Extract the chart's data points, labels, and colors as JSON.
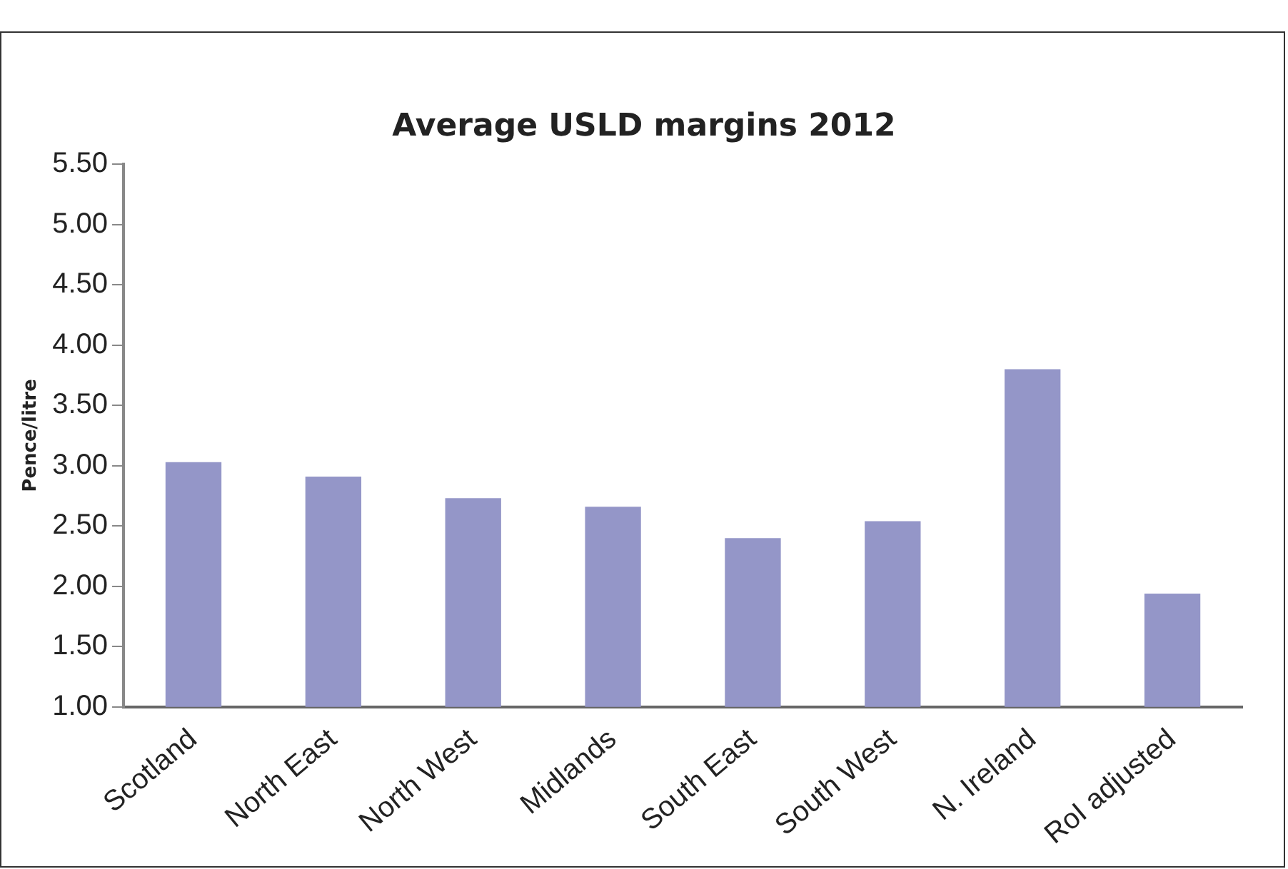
{
  "chart_data": {
    "type": "bar",
    "title": "Average USLD margins 2012",
    "ylabel": "Pence/litre",
    "categories": [
      "Scotland",
      "North East",
      "North West",
      "Midlands",
      "South East",
      "South West",
      "N. Ireland",
      "RoI adjusted"
    ],
    "values": [
      3.03,
      2.91,
      2.73,
      2.66,
      2.4,
      2.54,
      3.8,
      1.94
    ],
    "color": "#9496c8",
    "ylim": [
      1,
      5.5
    ],
    "yticks": [
      {
        "value": 1,
        "label": "1.00"
      },
      {
        "value": 1.5,
        "label": "1.50"
      },
      {
        "value": 2,
        "label": "2.00"
      },
      {
        "value": 2.5,
        "label": "2.50"
      },
      {
        "value": 3,
        "label": "3.00"
      },
      {
        "value": 3.5,
        "label": "3.50"
      },
      {
        "value": 4,
        "label": "4.00"
      },
      {
        "value": 4.5,
        "label": "4.50"
      },
      {
        "value": 5,
        "label": "5.00"
      },
      {
        "value": 5.5,
        "label": "5.50"
      }
    ],
    "grid": false,
    "legend": false
  }
}
